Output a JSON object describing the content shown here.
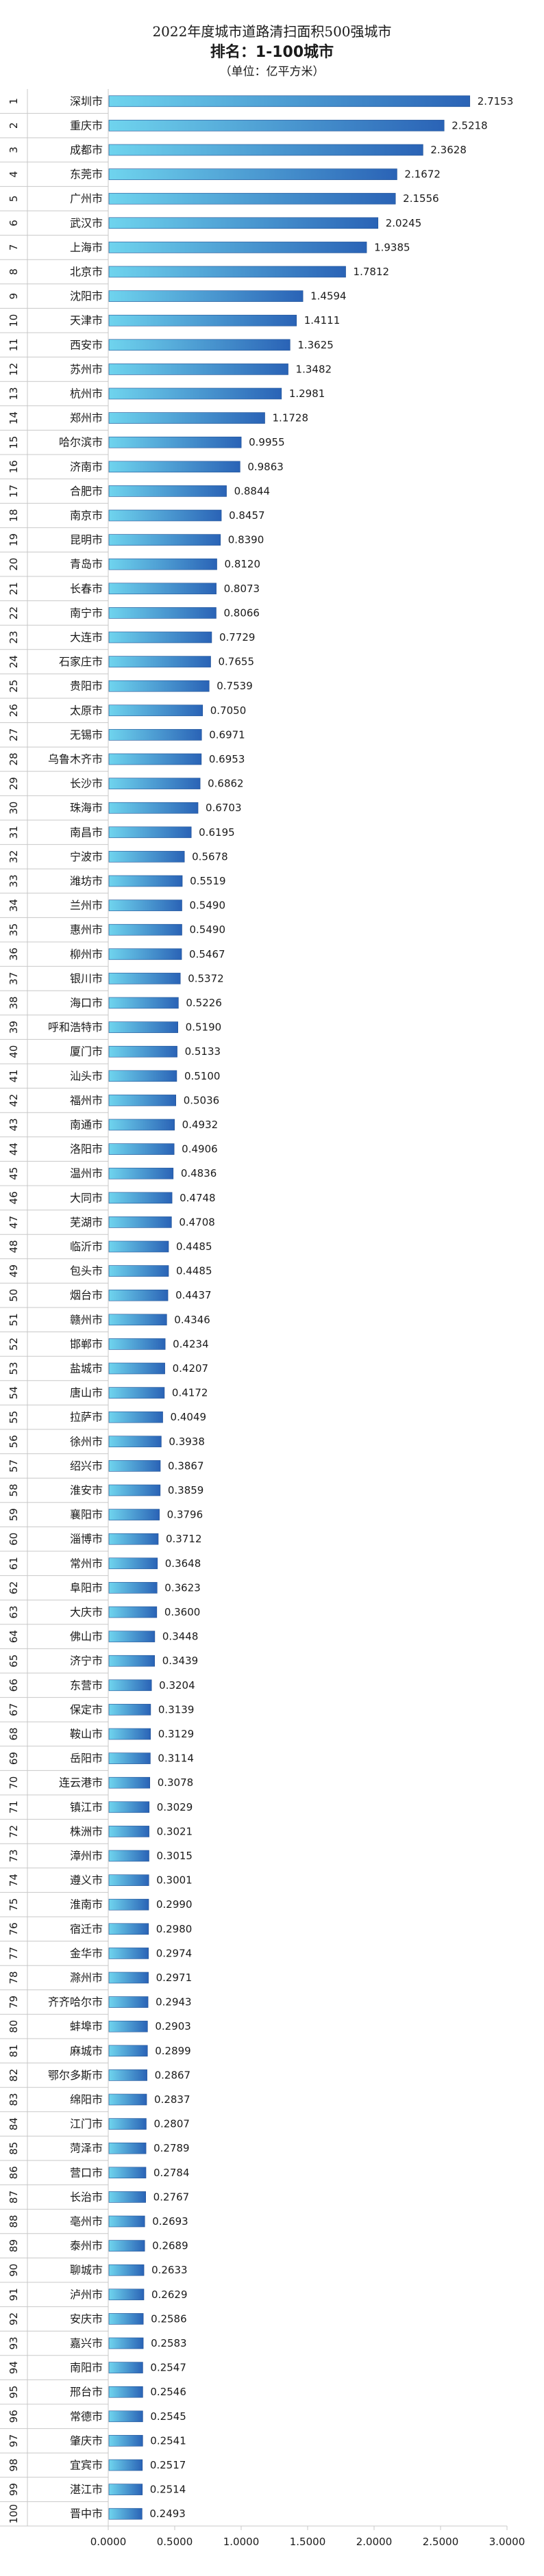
{
  "chart_data": {
    "type": "bar",
    "orientation": "horizontal",
    "title": "2022年度城市道路清扫面积500强城市",
    "subtitle": "排名：1-100城市",
    "unit_label": "（单位：亿平方米）",
    "xlim": [
      0,
      3
    ],
    "xticks": [
      "0.0000",
      "0.5000",
      "1.0000",
      "1.5000",
      "2.0000",
      "2.5000",
      "3.0000"
    ],
    "ranks": [
      "1",
      "2",
      "3",
      "4",
      "5",
      "6",
      "7",
      "8",
      "9",
      "10",
      "11",
      "12",
      "13",
      "14",
      "15",
      "16",
      "17",
      "18",
      "19",
      "20",
      "21",
      "22",
      "23",
      "24",
      "25",
      "26",
      "27",
      "28",
      "29",
      "30",
      "31",
      "32",
      "33",
      "34",
      "35",
      "36",
      "37",
      "38",
      "39",
      "40",
      "41",
      "42",
      "43",
      "44",
      "45",
      "46",
      "47",
      "48",
      "49",
      "50",
      "51",
      "52",
      "53",
      "54",
      "55",
      "56",
      "57",
      "58",
      "59",
      "60",
      "61",
      "62",
      "63",
      "64",
      "65",
      "66",
      "67",
      "68",
      "69",
      "70",
      "71",
      "72",
      "73",
      "74",
      "75",
      "76",
      "77",
      "78",
      "79",
      "80",
      "81",
      "82",
      "83",
      "84",
      "85",
      "86",
      "87",
      "88",
      "89",
      "90",
      "91",
      "92",
      "93",
      "94",
      "95",
      "96",
      "97",
      "98",
      "99",
      "100"
    ],
    "categories": [
      "深圳市",
      "重庆市",
      "成都市",
      "东莞市",
      "广州市",
      "武汉市",
      "上海市",
      "北京市",
      "沈阳市",
      "天津市",
      "西安市",
      "苏州市",
      "杭州市",
      "郑州市",
      "哈尔滨市",
      "济南市",
      "合肥市",
      "南京市",
      "昆明市",
      "青岛市",
      "长春市",
      "南宁市",
      "大连市",
      "石家庄市",
      "贵阳市",
      "太原市",
      "无锡市",
      "乌鲁木齐市",
      "长沙市",
      "珠海市",
      "南昌市",
      "宁波市",
      "潍坊市",
      "兰州市",
      "惠州市",
      "柳州市",
      "银川市",
      "海口市",
      "呼和浩特市",
      "厦门市",
      "汕头市",
      "福州市",
      "南通市",
      "洛阳市",
      "温州市",
      "大同市",
      "芜湖市",
      "临沂市",
      "包头市",
      "烟台市",
      "赣州市",
      "邯郸市",
      "盐城市",
      "唐山市",
      "拉萨市",
      "徐州市",
      "绍兴市",
      "淮安市",
      "襄阳市",
      "淄博市",
      "常州市",
      "阜阳市",
      "大庆市",
      "佛山市",
      "济宁市",
      "东营市",
      "保定市",
      "鞍山市",
      "岳阳市",
      "连云港市",
      "镇江市",
      "株洲市",
      "漳州市",
      "遵义市",
      "淮南市",
      "宿迁市",
      "金华市",
      "滁州市",
      "齐齐哈尔市",
      "蚌埠市",
      "麻城市",
      "鄂尔多斯市",
      "绵阳市",
      "江门市",
      "菏泽市",
      "营口市",
      "长治市",
      "亳州市",
      "泰州市",
      "聊城市",
      "泸州市",
      "安庆市",
      "嘉兴市",
      "南阳市",
      "邢台市",
      "常德市",
      "肇庆市",
      "宜宾市",
      "湛江市",
      "晋中市"
    ],
    "values": [
      2.7153,
      2.5218,
      2.3628,
      2.1672,
      2.1556,
      2.0245,
      1.9385,
      1.7812,
      1.4594,
      1.4111,
      1.3625,
      1.3482,
      1.2981,
      1.1728,
      0.9955,
      0.9863,
      0.8844,
      0.8457,
      0.839,
      0.812,
      0.8073,
      0.8066,
      0.7729,
      0.7655,
      0.7539,
      0.705,
      0.6971,
      0.6953,
      0.6862,
      0.6703,
      0.6195,
      0.5678,
      0.5519,
      0.549,
      0.549,
      0.5467,
      0.5372,
      0.5226,
      0.519,
      0.5133,
      0.51,
      0.5036,
      0.4932,
      0.4906,
      0.4836,
      0.4748,
      0.4708,
      0.4485,
      0.4485,
      0.4437,
      0.4346,
      0.4234,
      0.4207,
      0.4172,
      0.4049,
      0.3938,
      0.3867,
      0.3859,
      0.3796,
      0.3712,
      0.3648,
      0.3623,
      0.36,
      0.3448,
      0.3439,
      0.3204,
      0.3139,
      0.3129,
      0.3114,
      0.3078,
      0.3029,
      0.3021,
      0.3015,
      0.3001,
      0.299,
      0.298,
      0.2974,
      0.2971,
      0.2943,
      0.2903,
      0.2899,
      0.2867,
      0.2837,
      0.2807,
      0.2789,
      0.2784,
      0.2767,
      0.2693,
      0.2689,
      0.2633,
      0.2629,
      0.2586,
      0.2583,
      0.2547,
      0.2546,
      0.2545,
      0.2541,
      0.2517,
      0.2514,
      0.2493
    ],
    "value_labels": [
      "2.7153",
      "2.5218",
      "2.3628",
      "2.1672",
      "2.1556",
      "2.0245",
      "1.9385",
      "1.7812",
      "1.4594",
      "1.4111",
      "1.3625",
      "1.3482",
      "1.2981",
      "1.1728",
      "0.9955",
      "0.9863",
      "0.8844",
      "0.8457",
      "0.8390",
      "0.8120",
      "0.8073",
      "0.8066",
      "0.7729",
      "0.7655",
      "0.7539",
      "0.7050",
      "0.6971",
      "0.6953",
      "0.6862",
      "0.6703",
      "0.6195",
      "0.5678",
      "0.5519",
      "0.5490",
      "0.5490",
      "0.5467",
      "0.5372",
      "0.5226",
      "0.5190",
      "0.5133",
      "0.5100",
      "0.5036",
      "0.4932",
      "0.4906",
      "0.4836",
      "0.4748",
      "0.4708",
      "0.4485",
      "0.4485",
      "0.4437",
      "0.4346",
      "0.4234",
      "0.4207",
      "0.4172",
      "0.4049",
      "0.3938",
      "0.3867",
      "0.3859",
      "0.3796",
      "0.3712",
      "0.3648",
      "0.3623",
      "0.3600",
      "0.3448",
      "0.3439",
      "0.3204",
      "0.3139",
      "0.3129",
      "0.3114",
      "0.3078",
      "0.3029",
      "0.3021",
      "0.3015",
      "0.3001",
      "0.2990",
      "0.2980",
      "0.2974",
      "0.2971",
      "0.2943",
      "0.2903",
      "0.2899",
      "0.2867",
      "0.2837",
      "0.2807",
      "0.2789",
      "0.2784",
      "0.2767",
      "0.2693",
      "0.2689",
      "0.2633",
      "0.2629",
      "0.2586",
      "0.2583",
      "0.2547",
      "0.2546",
      "0.2545",
      "0.2541",
      "0.2517",
      "0.2514",
      "0.2493"
    ],
    "grid": false,
    "legend": "none",
    "colors": {
      "bar_light": "#6fd4ee",
      "bar_dark": "#2a63b6",
      "bar_edge": "#1f4f93",
      "axis": "#c8c8c8",
      "text": "#1a1a1a"
    }
  }
}
